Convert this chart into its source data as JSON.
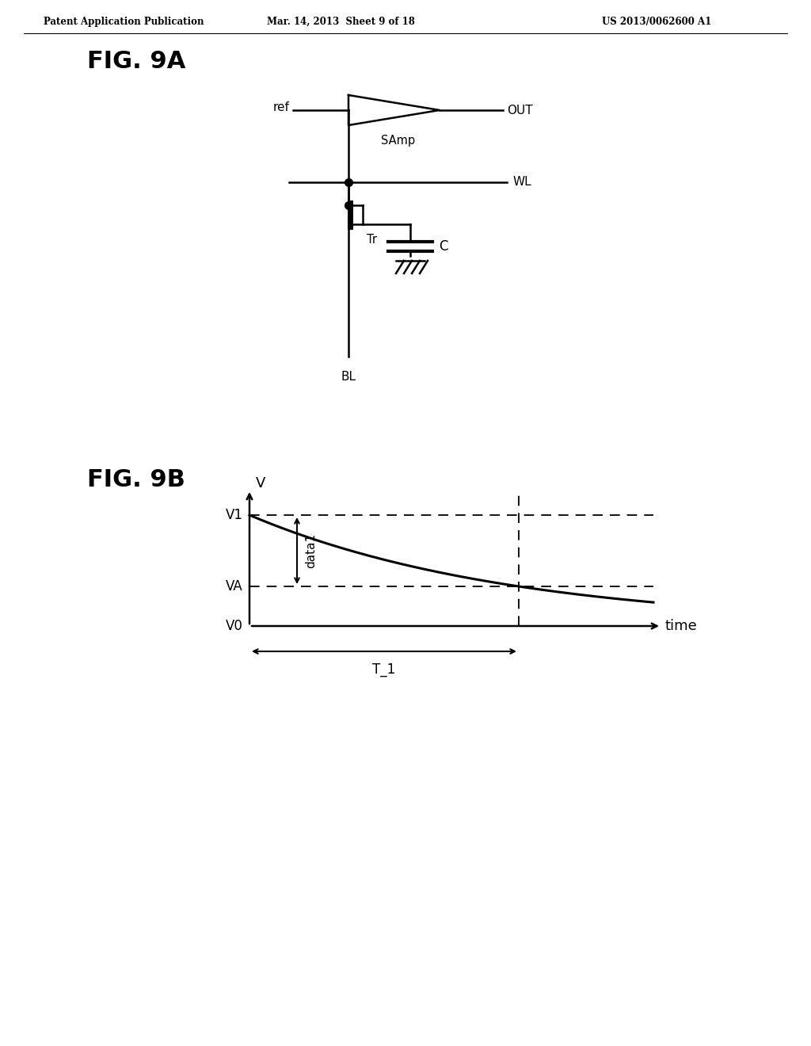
{
  "header_left": "Patent Application Publication",
  "header_mid": "Mar. 14, 2013  Sheet 9 of 18",
  "header_right": "US 2013/0062600 A1",
  "fig9a_label": "FIG. 9A",
  "fig9b_label": "FIG. 9B",
  "circuit_labels": {
    "ref": "ref",
    "out": "OUT",
    "samp": "SAmp",
    "wl": "WL",
    "tr": "Tr",
    "c": "C",
    "bl": "BL"
  },
  "graph_labels": {
    "v_axis": "V",
    "v1": "V1",
    "va": "VA",
    "v0": "V0",
    "time": "time",
    "t1": "T_1",
    "data1": "data1"
  },
  "bg_color": "#ffffff",
  "line_color": "#000000"
}
